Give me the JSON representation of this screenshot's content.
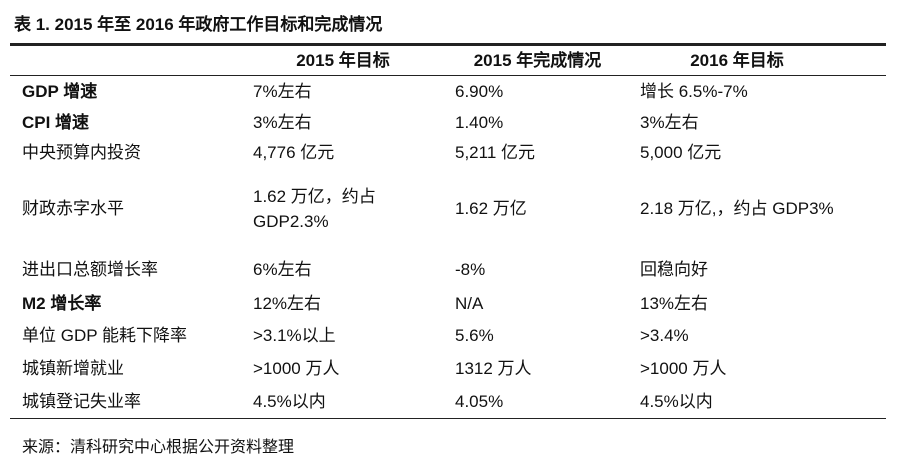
{
  "title": "表 1. 2015 年至 2016 年政府工作目标和完成情况",
  "table": {
    "header": [
      "",
      "2015 年目标",
      "2015 年完成情况",
      "2016 年目标"
    ],
    "rows": [
      [
        "GDP 增速",
        "7%左右",
        "6.90%",
        "增长 6.5%-7%"
      ],
      [
        "CPI 增速",
        "3%左右",
        "1.40%",
        "3%左右"
      ],
      [
        "中央预算内投资",
        "4,776 亿元",
        "5,211 亿元",
        "5,000 亿元"
      ],
      [
        "财政赤字水平",
        "1.62 万亿，约占\nGDP2.3%",
        "1.62 万亿",
        "2.18 万亿,，约占 GDP3%"
      ],
      [
        "进出口总额增长率",
        "6%左右",
        "-8%",
        "回稳向好"
      ],
      [
        "M2 增长率",
        "12%左右",
        "N/A",
        "13%左右"
      ],
      [
        "单位 GDP 能耗下降率",
        ">3.1%以上",
        "5.6%",
        ">3.4%"
      ],
      [
        "城镇新增就业",
        ">1000 万人",
        "1312 万人",
        ">1000 万人"
      ],
      [
        "城镇登记失业率",
        "4.5%以内",
        "4.05%",
        "4.5%以内"
      ]
    ]
  },
  "source": "来源：清科研究中心根据公开资料整理"
}
